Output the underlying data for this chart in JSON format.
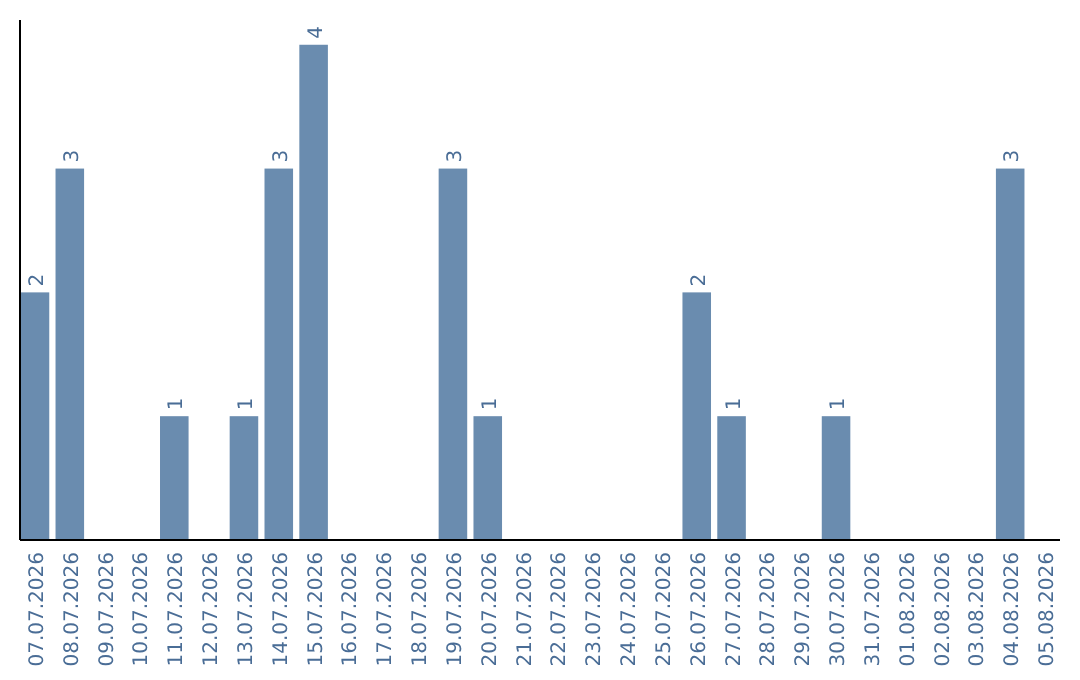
{
  "chart_data": {
    "type": "bar",
    "categories": [
      "07.07.2026",
      "08.07.2026",
      "09.07.2026",
      "10.07.2026",
      "11.07.2026",
      "12.07.2026",
      "13.07.2026",
      "14.07.2026",
      "15.07.2026",
      "16.07.2026",
      "17.07.2026",
      "18.07.2026",
      "19.07.2026",
      "20.07.2026",
      "21.07.2026",
      "22.07.2026",
      "23.07.2026",
      "24.07.2026",
      "25.07.2026",
      "26.07.2026",
      "27.07.2026",
      "28.07.2026",
      "29.07.2026",
      "30.07.2026",
      "31.07.2026",
      "01.08.2026",
      "02.08.2026",
      "03.08.2026",
      "04.08.2026",
      "05.08.2026"
    ],
    "values": [
      2,
      3,
      0,
      0,
      1,
      0,
      1,
      3,
      4,
      0,
      0,
      0,
      3,
      1,
      0,
      0,
      0,
      0,
      0,
      2,
      1,
      0,
      0,
      1,
      0,
      0,
      0,
      0,
      3,
      0
    ],
    "value_labels": [
      "2",
      "3",
      null,
      null,
      "1",
      null,
      "1",
      "3",
      "4",
      null,
      null,
      null,
      "3",
      "1",
      null,
      null,
      null,
      null,
      null,
      "2",
      "1",
      null,
      null,
      "1",
      null,
      null,
      null,
      null,
      "3",
      null
    ],
    "color": "#6a8caf",
    "ylim": [
      0,
      4.2
    ],
    "tick_labels": "x"
  }
}
